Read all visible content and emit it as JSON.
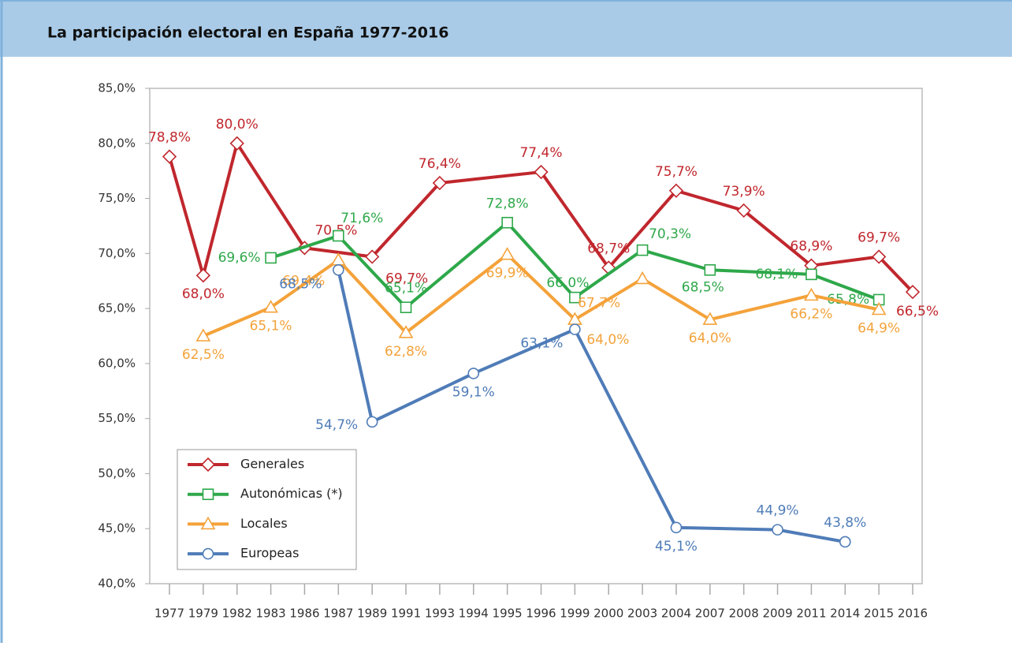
{
  "chart_data": {
    "type": "line",
    "title": "La participación electoral en España 1977-2016",
    "categories": [
      "1977",
      "1979",
      "1982",
      "1983",
      "1986",
      "1987",
      "1989",
      "1991",
      "1993",
      "1994",
      "1995",
      "1996",
      "1999",
      "2000",
      "2003",
      "2004",
      "2007",
      "2008",
      "2009",
      "2011",
      "2014",
      "2015",
      "2016"
    ],
    "ylim": [
      40,
      85
    ],
    "yticks": [
      {
        "value": 40,
        "label": "40,0%"
      },
      {
        "value": 45,
        "label": "45,0%"
      },
      {
        "value": 50,
        "label": "50,0%"
      },
      {
        "value": 55,
        "label": "55,0%"
      },
      {
        "value": 60,
        "label": "60,0%"
      },
      {
        "value": 65,
        "label": "65,0%"
      },
      {
        "value": 70,
        "label": "70,0%"
      },
      {
        "value": 75,
        "label": "75,0%"
      },
      {
        "value": 80,
        "label": "80,0%"
      },
      {
        "value": 85,
        "label": "85,0%"
      }
    ],
    "legend": "lower left",
    "series": [
      {
        "name": "Generales",
        "color": "#c0272d",
        "marker": "diamond",
        "values": [
          78.8,
          68.0,
          80.0,
          null,
          70.5,
          null,
          69.7,
          null,
          76.4,
          null,
          null,
          77.4,
          null,
          68.7,
          null,
          75.7,
          null,
          73.9,
          null,
          68.9,
          null,
          69.7,
          66.5
        ],
        "value_labels": [
          "78,8%",
          "68,0%",
          "80,0%",
          null,
          "70,5%",
          null,
          "69,7%",
          null,
          "76,4%",
          null,
          null,
          "77,4%",
          null,
          "68,7%",
          null,
          "75,7%",
          null,
          "73,9%",
          null,
          "68,9%",
          null,
          "69,7%",
          "66,5%"
        ]
      },
      {
        "name": "Autonómicas (*)",
        "color": "#2ea84a",
        "marker": "square",
        "values": [
          null,
          null,
          null,
          69.6,
          null,
          71.6,
          null,
          65.1,
          null,
          null,
          72.8,
          null,
          66.0,
          null,
          70.3,
          null,
          68.5,
          null,
          null,
          68.1,
          null,
          65.8,
          null
        ],
        "value_labels": [
          null,
          null,
          null,
          "69,6%",
          null,
          "71,6%",
          null,
          "65,1%",
          null,
          null,
          "72,8%",
          null,
          "66,0%",
          null,
          "70,3%",
          null,
          "68,5%",
          null,
          null,
          "68,1%",
          null,
          "65,8%",
          null
        ]
      },
      {
        "name": "Locales",
        "color": "#f4a23a",
        "marker": "triangle",
        "values": [
          null,
          62.5,
          null,
          65.1,
          null,
          69.4,
          null,
          62.8,
          null,
          null,
          69.9,
          null,
          64.0,
          null,
          67.7,
          null,
          64.0,
          null,
          null,
          66.2,
          null,
          64.9,
          null
        ],
        "value_labels": [
          null,
          "62,5%",
          null,
          "65,1%",
          null,
          "69,4%",
          null,
          "62,8%",
          null,
          null,
          "69,9%",
          null,
          "64,0%",
          null,
          "67,7%",
          null,
          "64,0%",
          null,
          null,
          "66,2%",
          null,
          "64,9%",
          null
        ]
      },
      {
        "name": "Europeas",
        "color": "#4f7cb8",
        "marker": "circle",
        "values": [
          null,
          null,
          null,
          null,
          null,
          68.5,
          54.7,
          null,
          null,
          59.1,
          null,
          null,
          63.1,
          null,
          null,
          45.1,
          null,
          null,
          44.9,
          null,
          43.8,
          null,
          null
        ],
        "value_labels": [
          null,
          null,
          null,
          null,
          null,
          "68,5%",
          "54,7%",
          null,
          null,
          "59,1%",
          null,
          null,
          "63,1%",
          null,
          null,
          "45,1%",
          null,
          null,
          "44,9%",
          null,
          "43,8%",
          null,
          null
        ]
      }
    ]
  }
}
